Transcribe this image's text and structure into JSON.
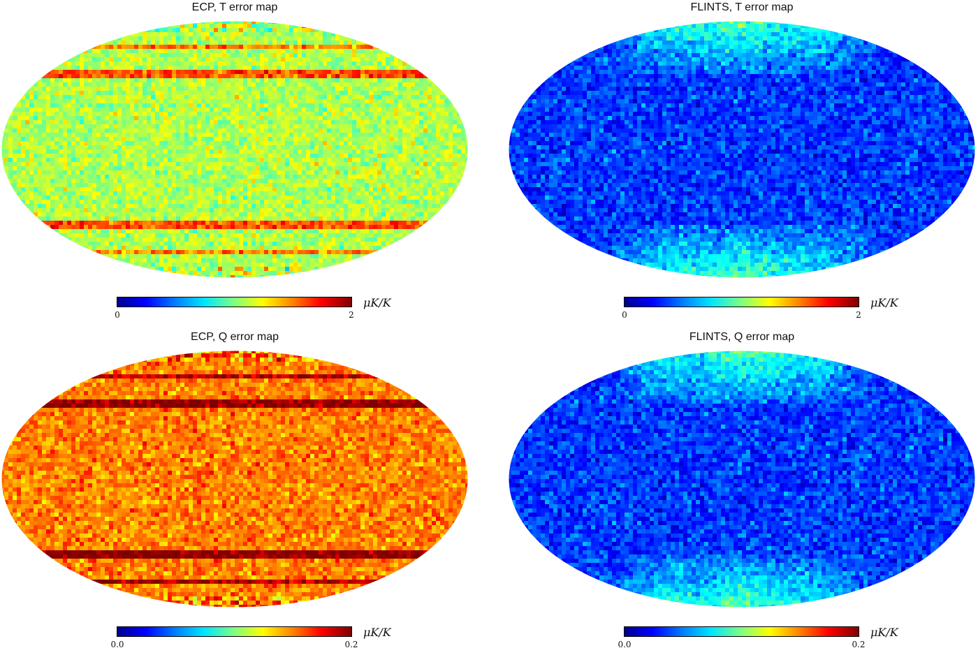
{
  "chart_data": [
    {
      "type": "heatmap",
      "title": "ECP, T error map",
      "projection": "mollweide",
      "colormap": "jet",
      "colorbar": {
        "min": 0,
        "max": 2,
        "min_label": "0",
        "max_label": "2",
        "unit": "μK/K"
      },
      "pattern": "uniform noise with horizontal banding, mostly mid-range (greens/yellows)",
      "dominant_level": 0.55
    },
    {
      "type": "heatmap",
      "title": "FLINTS, T error map",
      "projection": "mollweide",
      "colormap": "jet",
      "colorbar": {
        "min": 0,
        "max": 2,
        "min_label": "0",
        "max_label": "2",
        "unit": "μK/K"
      },
      "pattern": "low-level blue noise with brighter cyan streaks near poles",
      "dominant_level": 0.18
    },
    {
      "type": "heatmap",
      "title": "ECP, Q error map",
      "projection": "mollweide",
      "colormap": "jet",
      "colorbar": {
        "min": 0.0,
        "max": 0.2,
        "min_label": "0.0",
        "max_label": "0.2",
        "unit": "μK/K"
      },
      "pattern": "high-level noise (oranges/reds) with dark red horizontal bands",
      "dominant_level": 0.75
    },
    {
      "type": "heatmap",
      "title": "FLINTS, Q error map",
      "projection": "mollweide",
      "colormap": "jet",
      "colorbar": {
        "min": 0.0,
        "max": 0.2,
        "min_label": "0.0",
        "max_label": "0.2",
        "unit": "μK/K"
      },
      "pattern": "low-level blue noise with green/cyan streaks near poles",
      "dominant_level": 0.18
    }
  ]
}
